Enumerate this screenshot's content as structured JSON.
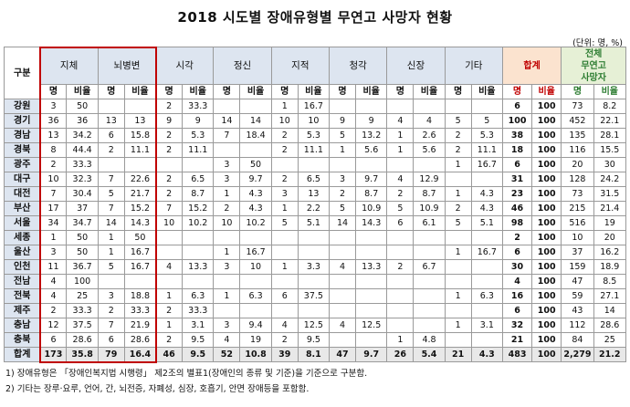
{
  "title": "2018 시도별 장애유형별 무연고 사망자 현황",
  "unit": "(단위: 명, %)",
  "header": {
    "gu": "구분",
    "categories": [
      "지체",
      "뇌병변",
      "시각",
      "정신",
      "지적",
      "청각",
      "신장",
      "기타"
    ],
    "sum_label": "합계",
    "total_label_lines": [
      "전체",
      "무연고",
      "사망자"
    ],
    "sub_count": "명",
    "sub_ratio": "비율"
  },
  "rows": [
    {
      "region": "강원",
      "cells": [
        "3",
        "50",
        "",
        "",
        "2",
        "33.3",
        "",
        "",
        "1",
        "16.7",
        "",
        "",
        "",
        "",
        "",
        "",
        "6",
        "100",
        "73",
        "8.2"
      ]
    },
    {
      "region": "경기",
      "cells": [
        "36",
        "36",
        "13",
        "13",
        "9",
        "9",
        "14",
        "14",
        "10",
        "10",
        "9",
        "9",
        "4",
        "4",
        "5",
        "5",
        "100",
        "100",
        "452",
        "22.1"
      ]
    },
    {
      "region": "경남",
      "cells": [
        "13",
        "34.2",
        "6",
        "15.8",
        "2",
        "5.3",
        "7",
        "18.4",
        "2",
        "5.3",
        "5",
        "13.2",
        "1",
        "2.6",
        "2",
        "5.3",
        "38",
        "100",
        "135",
        "28.1"
      ]
    },
    {
      "region": "경북",
      "cells": [
        "8",
        "44.4",
        "2",
        "11.1",
        "2",
        "11.1",
        "",
        "",
        "2",
        "11.1",
        "1",
        "5.6",
        "1",
        "5.6",
        "2",
        "11.1",
        "18",
        "100",
        "116",
        "15.5"
      ]
    },
    {
      "region": "광주",
      "cells": [
        "2",
        "33.3",
        "",
        "",
        "",
        "",
        "3",
        "50",
        "",
        "",
        "",
        "",
        "",
        "",
        "1",
        "16.7",
        "6",
        "100",
        "20",
        "30"
      ]
    },
    {
      "region": "대구",
      "cells": [
        "10",
        "32.3",
        "7",
        "22.6",
        "2",
        "6.5",
        "3",
        "9.7",
        "2",
        "6.5",
        "3",
        "9.7",
        "4",
        "12.9",
        "",
        "",
        "31",
        "100",
        "128",
        "24.2"
      ]
    },
    {
      "region": "대전",
      "cells": [
        "7",
        "30.4",
        "5",
        "21.7",
        "2",
        "8.7",
        "1",
        "4.3",
        "3",
        "13",
        "2",
        "8.7",
        "2",
        "8.7",
        "1",
        "4.3",
        "23",
        "100",
        "73",
        "31.5"
      ]
    },
    {
      "region": "부산",
      "cells": [
        "17",
        "37",
        "7",
        "15.2",
        "7",
        "15.2",
        "2",
        "4.3",
        "1",
        "2.2",
        "5",
        "10.9",
        "5",
        "10.9",
        "2",
        "4.3",
        "46",
        "100",
        "215",
        "21.4"
      ]
    },
    {
      "region": "서울",
      "cells": [
        "34",
        "34.7",
        "14",
        "14.3",
        "10",
        "10.2",
        "10",
        "10.2",
        "5",
        "5.1",
        "14",
        "14.3",
        "6",
        "6.1",
        "5",
        "5.1",
        "98",
        "100",
        "516",
        "19"
      ]
    },
    {
      "region": "세종",
      "cells": [
        "1",
        "50",
        "1",
        "50",
        "",
        "",
        "",
        "",
        "",
        "",
        "",
        "",
        "",
        "",
        "",
        "",
        "2",
        "100",
        "10",
        "20"
      ]
    },
    {
      "region": "울산",
      "cells": [
        "3",
        "50",
        "1",
        "16.7",
        "",
        "",
        "1",
        "16.7",
        "",
        "",
        "",
        "",
        "",
        "",
        "1",
        "16.7",
        "6",
        "100",
        "37",
        "16.2"
      ]
    },
    {
      "region": "인천",
      "cells": [
        "11",
        "36.7",
        "5",
        "16.7",
        "4",
        "13.3",
        "3",
        "10",
        "1",
        "3.3",
        "4",
        "13.3",
        "2",
        "6.7",
        "",
        "",
        "30",
        "100",
        "159",
        "18.9"
      ]
    },
    {
      "region": "전남",
      "cells": [
        "4",
        "100",
        "",
        "",
        "",
        "",
        "",
        "",
        "",
        "",
        "",
        "",
        "",
        "",
        "",
        "",
        "4",
        "100",
        "47",
        "8.5"
      ]
    },
    {
      "region": "전북",
      "cells": [
        "4",
        "25",
        "3",
        "18.8",
        "1",
        "6.3",
        "1",
        "6.3",
        "6",
        "37.5",
        "",
        "",
        "",
        "",
        "1",
        "6.3",
        "16",
        "100",
        "59",
        "27.1"
      ]
    },
    {
      "region": "제주",
      "cells": [
        "2",
        "33.3",
        "2",
        "33.3",
        "2",
        "33.3",
        "",
        "",
        "",
        "",
        "",
        "",
        "",
        "",
        "",
        "",
        "6",
        "100",
        "43",
        "14"
      ]
    },
    {
      "region": "충남",
      "cells": [
        "12",
        "37.5",
        "7",
        "21.9",
        "1",
        "3.1",
        "3",
        "9.4",
        "4",
        "12.5",
        "4",
        "12.5",
        "",
        "",
        "1",
        "3.1",
        "32",
        "100",
        "112",
        "28.6"
      ]
    },
    {
      "region": "충북",
      "cells": [
        "6",
        "28.6",
        "6",
        "28.6",
        "2",
        "9.5",
        "4",
        "19",
        "2",
        "9.5",
        "",
        "",
        "1",
        "4.8",
        "",
        "",
        "21",
        "100",
        "84",
        "25"
      ]
    }
  ],
  "total_row": {
    "region": "합계",
    "cells": [
      "173",
      "35.8",
      "79",
      "16.4",
      "46",
      "9.5",
      "52",
      "10.8",
      "39",
      "8.1",
      "47",
      "9.7",
      "26",
      "5.4",
      "21",
      "4.3",
      "483",
      "100",
      "2,279",
      "21.2"
    ]
  },
  "notes": [
    "1) 장애유형은 「장애인복지법 시행령」 제2조의 별표1(장애인의 종류 및 기준)을 기준으로 구분함.",
    "2) 기타는 장루·요루, 언어, 간, 뇌전증, 자폐성, 심장, 호흡기, 안면 장애등을 포함함."
  ],
  "colors": {
    "header_bg": "#dde5f0",
    "sum_bg": "#fbe3cf",
    "total_bg": "#e6f0d6",
    "highlight_border": "#c00000"
  }
}
